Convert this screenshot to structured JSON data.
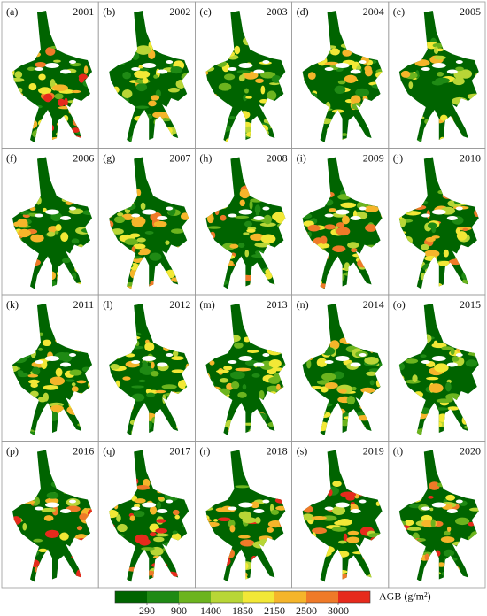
{
  "panels": [
    {
      "label": "(a)",
      "year": "2001"
    },
    {
      "label": "(b)",
      "year": "2002"
    },
    {
      "label": "(c)",
      "year": "2003"
    },
    {
      "label": "(d)",
      "year": "2004"
    },
    {
      "label": "(e)",
      "year": "2005"
    },
    {
      "label": "(f)",
      "year": "2006"
    },
    {
      "label": "(g)",
      "year": "2007"
    },
    {
      "label": "(h)",
      "year": "2008"
    },
    {
      "label": "(i)",
      "year": "2009"
    },
    {
      "label": "(j)",
      "year": "2010"
    },
    {
      "label": "(k)",
      "year": "2011"
    },
    {
      "label": "(l)",
      "year": "2012"
    },
    {
      "label": "(m)",
      "year": "2013"
    },
    {
      "label": "(n)",
      "year": "2014"
    },
    {
      "label": "(o)",
      "year": "2015"
    },
    {
      "label": "(p)",
      "year": "2016"
    },
    {
      "label": "(q)",
      "year": "2017"
    },
    {
      "label": "(r)",
      "year": "2018"
    },
    {
      "label": "(s)",
      "year": "2019"
    },
    {
      "label": "(t)",
      "year": "2020"
    }
  ],
  "colorbar": {
    "title": "AGB (g/m²)",
    "colors": [
      "#006400",
      "#1f8a14",
      "#6cb41e",
      "#b8d636",
      "#f2e836",
      "#f5b52a",
      "#ef7a28",
      "#e62a1c"
    ],
    "ticks": [
      290,
      900,
      1400,
      1850,
      2150,
      2500,
      3000
    ]
  }
}
